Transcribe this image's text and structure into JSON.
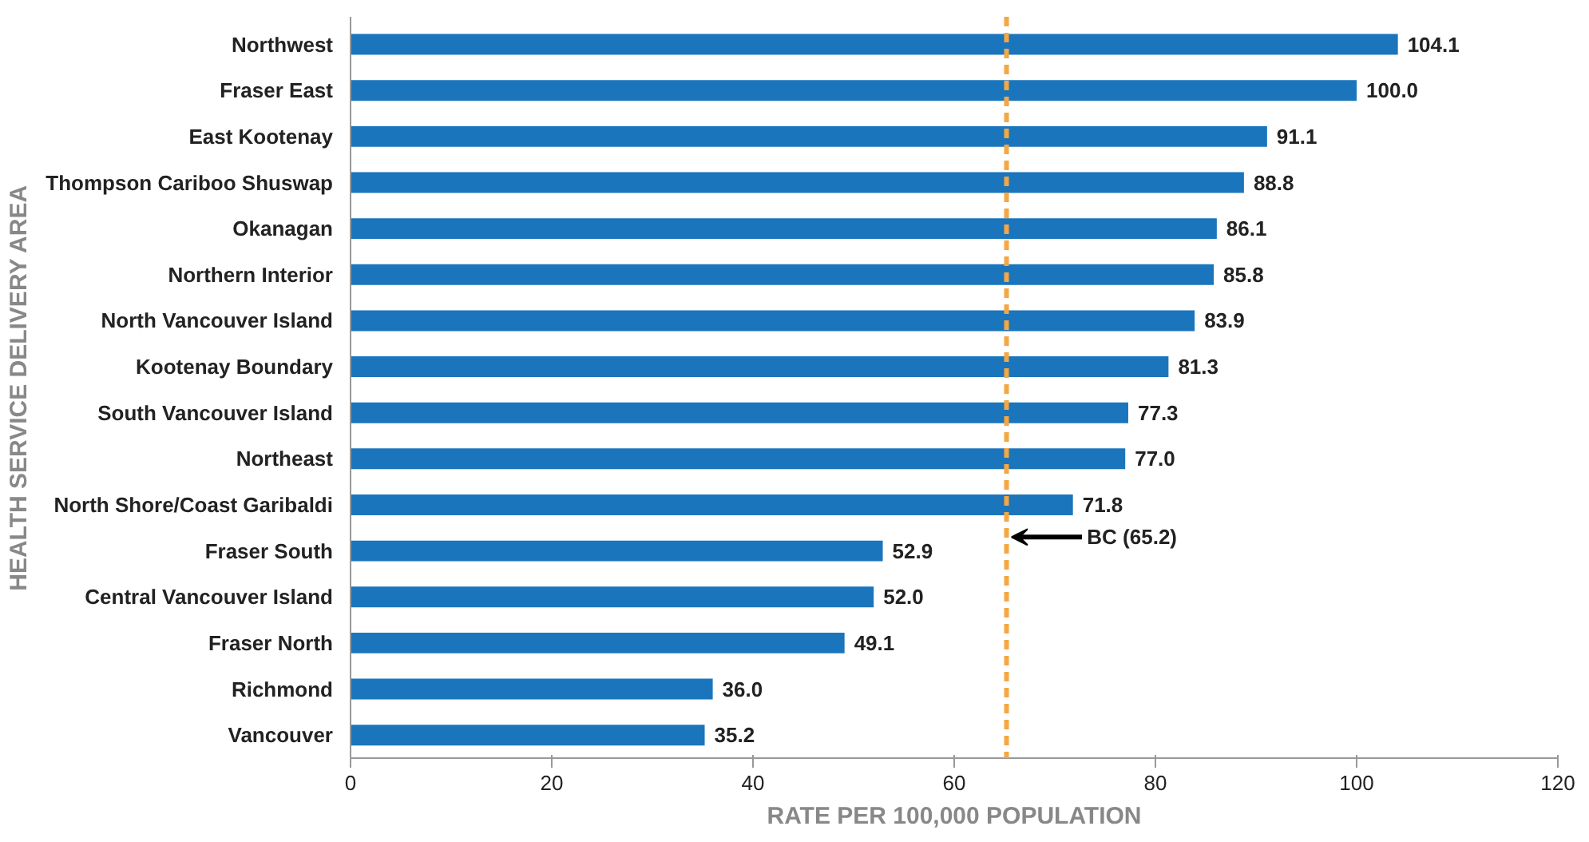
{
  "chart_data": {
    "type": "bar",
    "orientation": "horizontal",
    "xlabel": "RATE PER 100,000 POPULATION",
    "ylabel": "HEALTH SERVICE DELIVERY AREA",
    "categories": [
      "Northwest",
      "Fraser East",
      "East Kootenay",
      "Thompson Cariboo Shuswap",
      "Okanagan",
      "Northern Interior",
      "North Vancouver Island",
      "Kootenay Boundary",
      "South Vancouver Island",
      "Northeast",
      "North Shore/Coast Garibaldi",
      "Fraser South",
      "Central Vancouver Island",
      "Fraser North",
      "Richmond",
      "Vancouver"
    ],
    "values": [
      104.1,
      100.0,
      91.1,
      88.8,
      86.1,
      85.8,
      83.9,
      81.3,
      77.3,
      77.0,
      71.8,
      52.9,
      52.0,
      49.1,
      36.0,
      35.2
    ],
    "value_labels": [
      "104.1",
      "100.0",
      "91.1",
      "88.8",
      "86.1",
      "85.8",
      "83.9",
      "81.3",
      "77.3",
      "77.0",
      "71.8",
      "52.9",
      "52.0",
      "49.1",
      "36.0",
      "35.2"
    ],
    "color": "#1a75bc",
    "xlim": [
      0,
      120
    ],
    "xticks": [
      0,
      20,
      40,
      60,
      80,
      100,
      120
    ],
    "grid": false,
    "ref_lines": [
      {
        "axis": "x",
        "value": 65.2,
        "label": "BC (65.2)",
        "color": "#f4a742",
        "line_style": "dashed"
      }
    ]
  }
}
